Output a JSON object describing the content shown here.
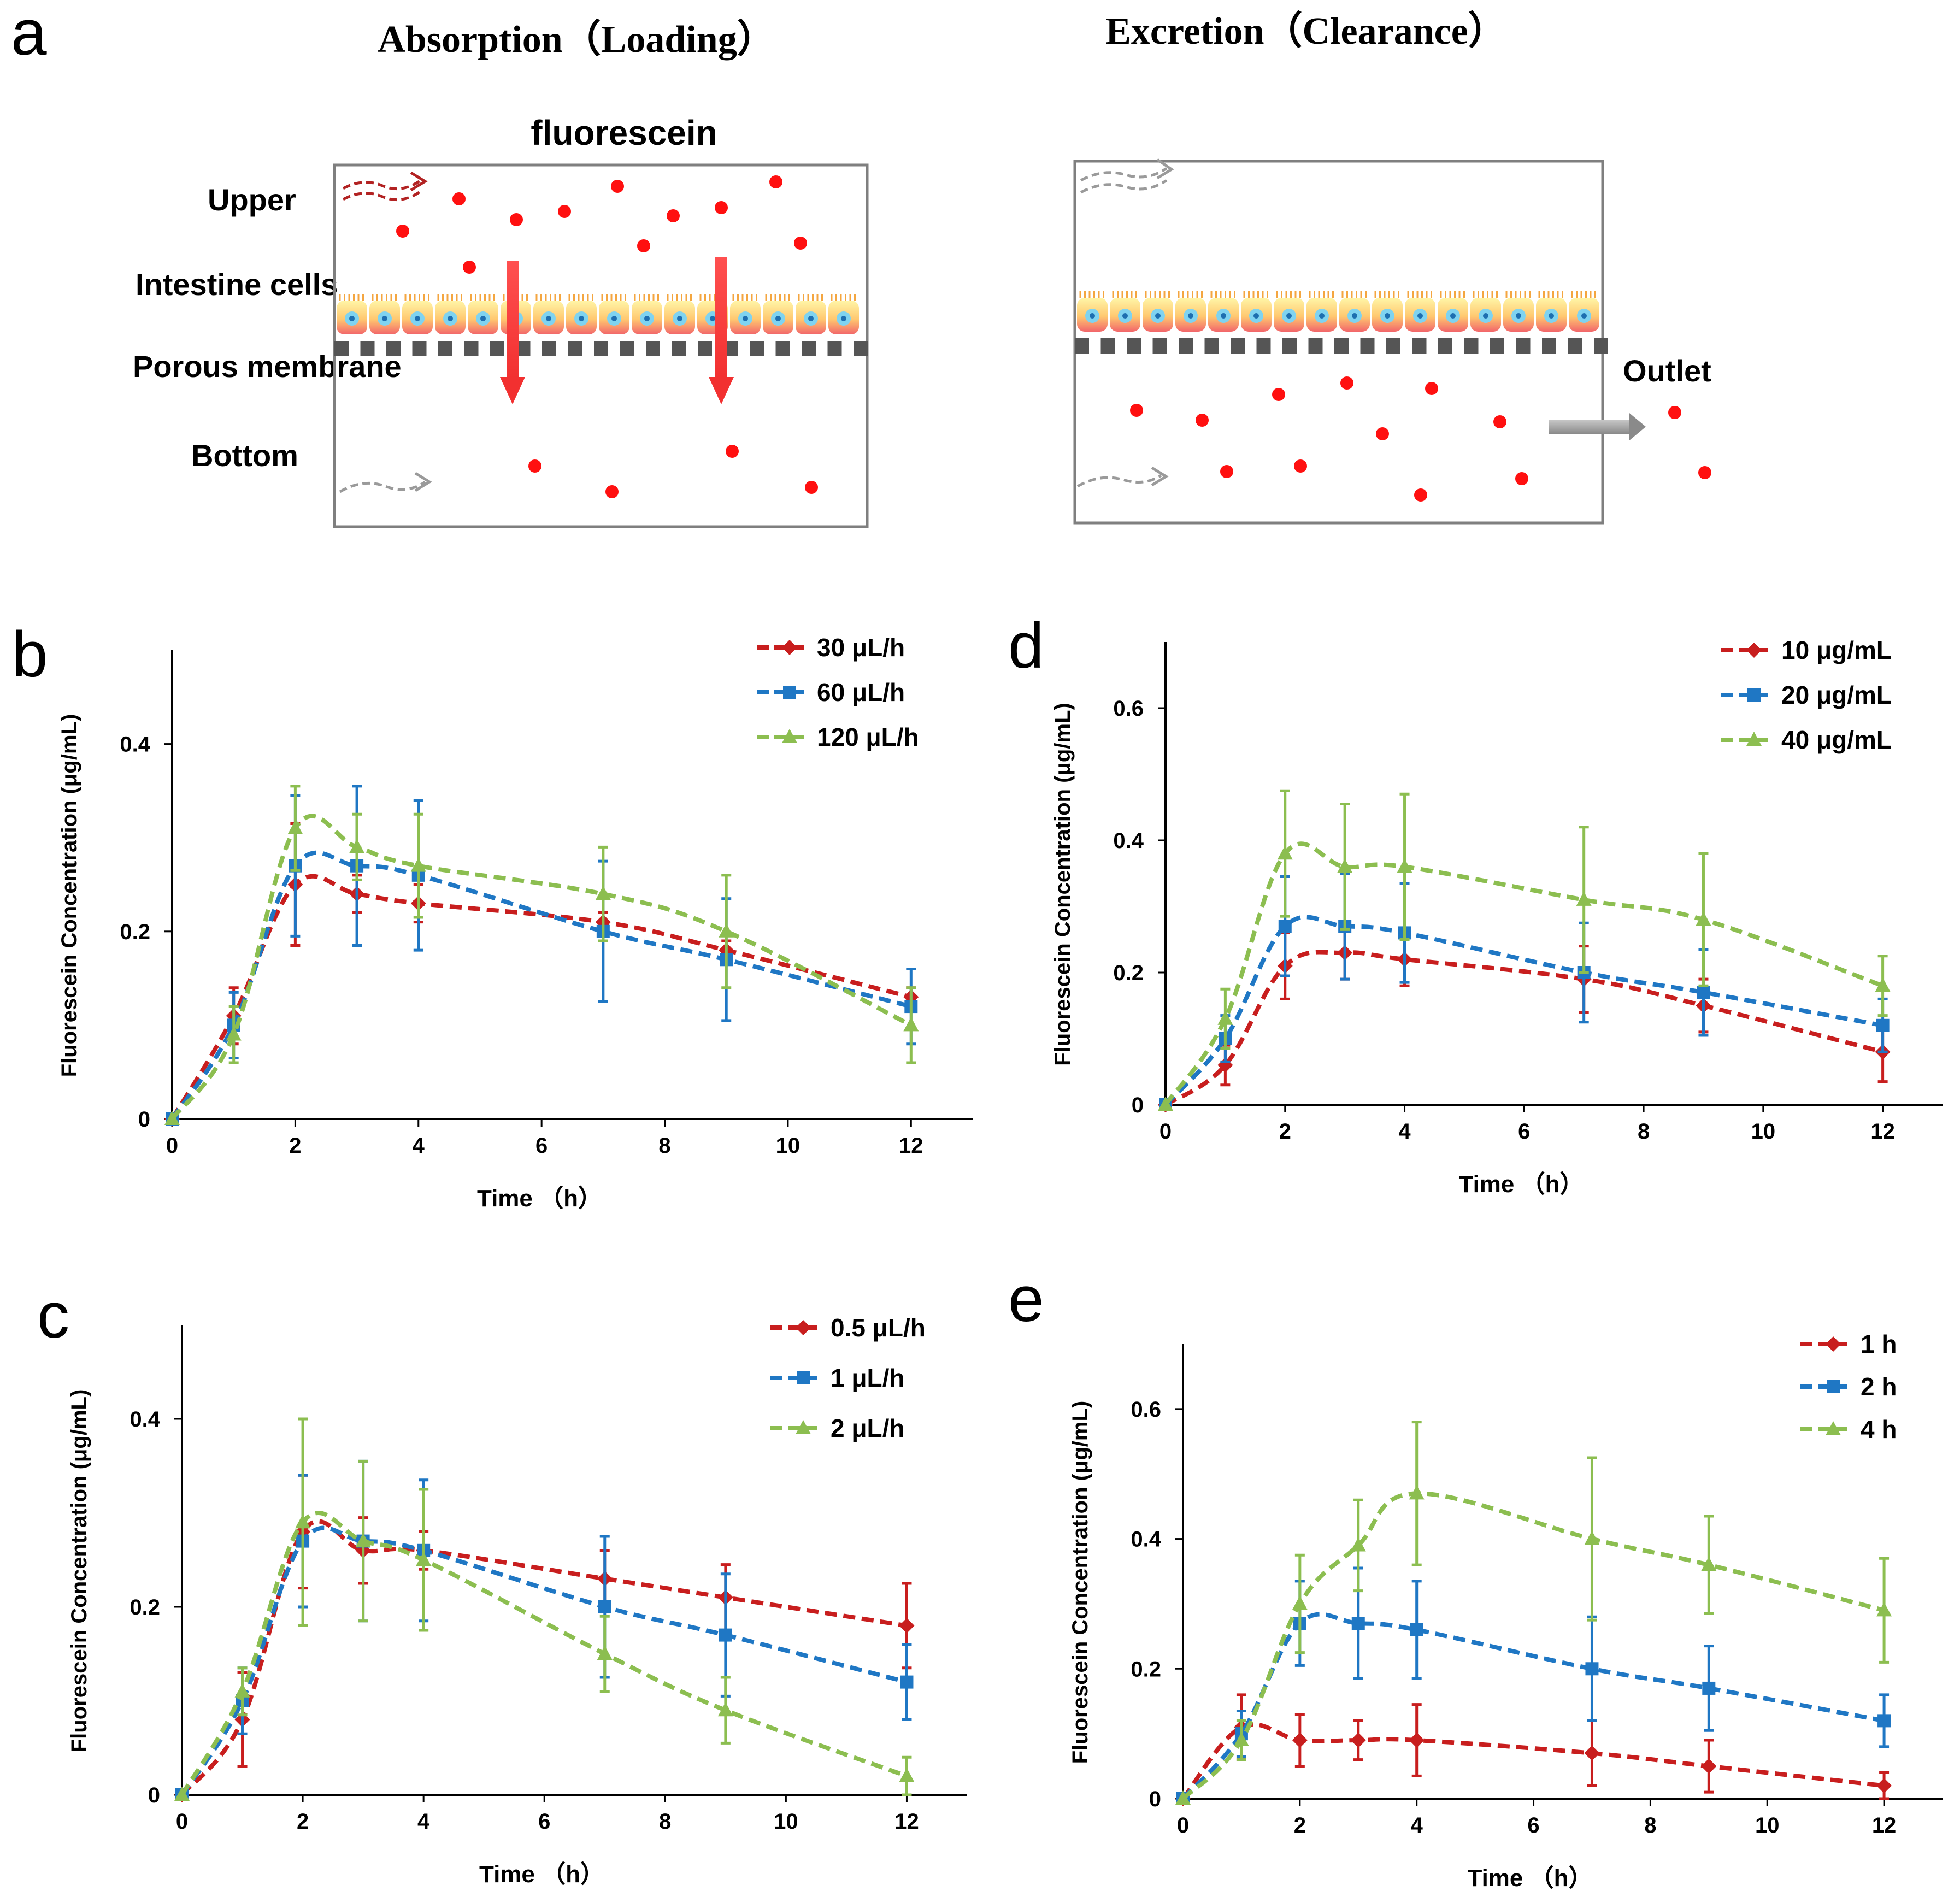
{
  "colors": {
    "red": "#C81E1E",
    "blue": "#1F77C4",
    "green": "#8CBE50",
    "dot": "#FF1010",
    "flow_gray": "#9A9A9A",
    "flow_red": "#B22222",
    "membrane": "#555555",
    "box": "#7F7F7F"
  },
  "panel_a": {
    "label": "a",
    "absorption_title": "Absorption（Loading）",
    "excretion_title": "Excretion（Clearance）",
    "compound": "fluorescein",
    "upper": "Upper",
    "intestine_cells": "Intestine cells",
    "porous_membrane": "Porous membrane",
    "bottom": "Bottom",
    "outlet": "Outlet"
  },
  "chart_data": [
    {
      "panel": "b",
      "type": "line",
      "xlabel": "Time （h）",
      "ylabel": "Fluorescein  Concentration  (μg/mL)",
      "xlim": [
        0,
        13
      ],
      "ylim": [
        0,
        0.5
      ],
      "xticks": [
        "0",
        "2",
        "4",
        "6",
        "8",
        "10",
        "12"
      ],
      "yticks": [
        "0",
        "0.2",
        "0.4"
      ],
      "x": [
        0,
        1,
        2,
        3,
        4,
        7,
        9,
        12
      ],
      "series": [
        {
          "name": "30 μL/h",
          "color_key": "red",
          "marker": "diamond",
          "values": [
            0,
            0.11,
            0.25,
            0.24,
            0.23,
            0.21,
            0.18,
            0.13
          ],
          "errors": [
            0,
            0.03,
            0.065,
            0.02,
            0.02,
            0.01,
            0.01,
            0.01
          ]
        },
        {
          "name": "60 μL/h",
          "color_key": "blue",
          "marker": "square",
          "values": [
            0,
            0.1,
            0.27,
            0.27,
            0.26,
            0.2,
            0.17,
            0.12
          ],
          "errors": [
            0,
            0.035,
            0.075,
            0.085,
            0.08,
            0.075,
            0.065,
            0.04
          ]
        },
        {
          "name": "120 μL/h",
          "color_key": "green",
          "marker": "triangle",
          "values": [
            0,
            0.09,
            0.31,
            0.29,
            0.27,
            0.24,
            0.2,
            0.1
          ],
          "errors": [
            0,
            0.03,
            0.045,
            0.035,
            0.055,
            0.05,
            0.06,
            0.04
          ]
        }
      ]
    },
    {
      "panel": "c",
      "type": "line",
      "xlabel": "Time （h）",
      "ylabel": "Fluorescein  Concentration  (μg/mL)",
      "xlim": [
        0,
        13
      ],
      "ylim": [
        0,
        0.5
      ],
      "xticks": [
        "0",
        "2",
        "4",
        "6",
        "8",
        "10",
        "12"
      ],
      "yticks": [
        "0",
        "0.2",
        "0.4"
      ],
      "x": [
        0,
        1,
        2,
        3,
        4,
        7,
        9,
        12
      ],
      "series": [
        {
          "name": "0.5 μL/h",
          "color_key": "red",
          "marker": "diamond",
          "values": [
            0,
            0.08,
            0.28,
            0.26,
            0.26,
            0.23,
            0.21,
            0.18
          ],
          "errors": [
            0,
            0.05,
            0.06,
            0.035,
            0.02,
            0.03,
            0.035,
            0.045
          ]
        },
        {
          "name": "1 μL/h",
          "color_key": "blue",
          "marker": "square",
          "values": [
            0,
            0.1,
            0.27,
            0.27,
            0.26,
            0.2,
            0.17,
            0.12
          ],
          "errors": [
            0,
            0.035,
            0.07,
            0.085,
            0.075,
            0.075,
            0.065,
            0.04
          ]
        },
        {
          "name": "2 μL/h",
          "color_key": "green",
          "marker": "triangle",
          "values": [
            0,
            0.11,
            0.29,
            0.27,
            0.25,
            0.15,
            0.09,
            0.02
          ],
          "errors": [
            0,
            0.025,
            0.11,
            0.085,
            0.075,
            0.04,
            0.035,
            0.02
          ]
        }
      ]
    },
    {
      "panel": "d",
      "type": "line",
      "xlabel": "Time （h）",
      "ylabel": "Fluorescein  Concentration  (μg/mL)",
      "xlim": [
        0,
        13
      ],
      "ylim": [
        0,
        0.7
      ],
      "xticks": [
        "0",
        "2",
        "4",
        "6",
        "8",
        "10",
        "12"
      ],
      "yticks": [
        "0",
        "0.2",
        "0.4",
        "0.6"
      ],
      "x": [
        0,
        1,
        2,
        3,
        4,
        7,
        9,
        12
      ],
      "series": [
        {
          "name": "10 μg/mL",
          "color_key": "red",
          "marker": "diamond",
          "values": [
            0,
            0.06,
            0.21,
            0.23,
            0.22,
            0.19,
            0.15,
            0.08
          ],
          "errors": [
            0,
            0.03,
            0.05,
            0.04,
            0.04,
            0.05,
            0.04,
            0.045
          ]
        },
        {
          "name": "20 μg/mL",
          "color_key": "blue",
          "marker": "square",
          "values": [
            0,
            0.1,
            0.27,
            0.27,
            0.26,
            0.2,
            0.17,
            0.12
          ],
          "errors": [
            0,
            0.035,
            0.075,
            0.08,
            0.075,
            0.075,
            0.065,
            0.04
          ]
        },
        {
          "name": "40 μg/mL",
          "color_key": "green",
          "marker": "triangle",
          "values": [
            0,
            0.13,
            0.38,
            0.36,
            0.36,
            0.31,
            0.28,
            0.18
          ],
          "errors": [
            0,
            0.045,
            0.095,
            0.095,
            0.11,
            0.11,
            0.1,
            0.045
          ]
        }
      ]
    },
    {
      "panel": "e",
      "type": "line",
      "xlabel": "Time （h）",
      "ylabel": "Fluorescein  Concentration  (μg/mL)",
      "xlim": [
        0,
        13
      ],
      "ylim": [
        0,
        0.7
      ],
      "xticks": [
        "0",
        "2",
        "4",
        "6",
        "8",
        "10",
        "12"
      ],
      "yticks": [
        "0",
        "0.2",
        "0.4",
        "0.6"
      ],
      "x": [
        0,
        1,
        2,
        3,
        4,
        7,
        9,
        12
      ],
      "series": [
        {
          "name": "1 h",
          "color_key": "red",
          "marker": "diamond",
          "values": [
            0,
            0.11,
            0.09,
            0.09,
            0.09,
            0.07,
            0.05,
            0.02
          ],
          "errors": [
            0,
            0.05,
            0.04,
            0.03,
            0.055,
            0.05,
            0.04,
            0.02
          ]
        },
        {
          "name": "2 h",
          "color_key": "blue",
          "marker": "square",
          "values": [
            0,
            0.1,
            0.27,
            0.27,
            0.26,
            0.2,
            0.17,
            0.12
          ],
          "errors": [
            0,
            0.035,
            0.065,
            0.085,
            0.075,
            0.08,
            0.065,
            0.04
          ]
        },
        {
          "name": "4 h",
          "color_key": "green",
          "marker": "triangle",
          "values": [
            0,
            0.09,
            0.3,
            0.39,
            0.47,
            0.4,
            0.36,
            0.29
          ],
          "errors": [
            0,
            0.03,
            0.075,
            0.07,
            0.11,
            0.125,
            0.075,
            0.08
          ]
        }
      ]
    }
  ]
}
